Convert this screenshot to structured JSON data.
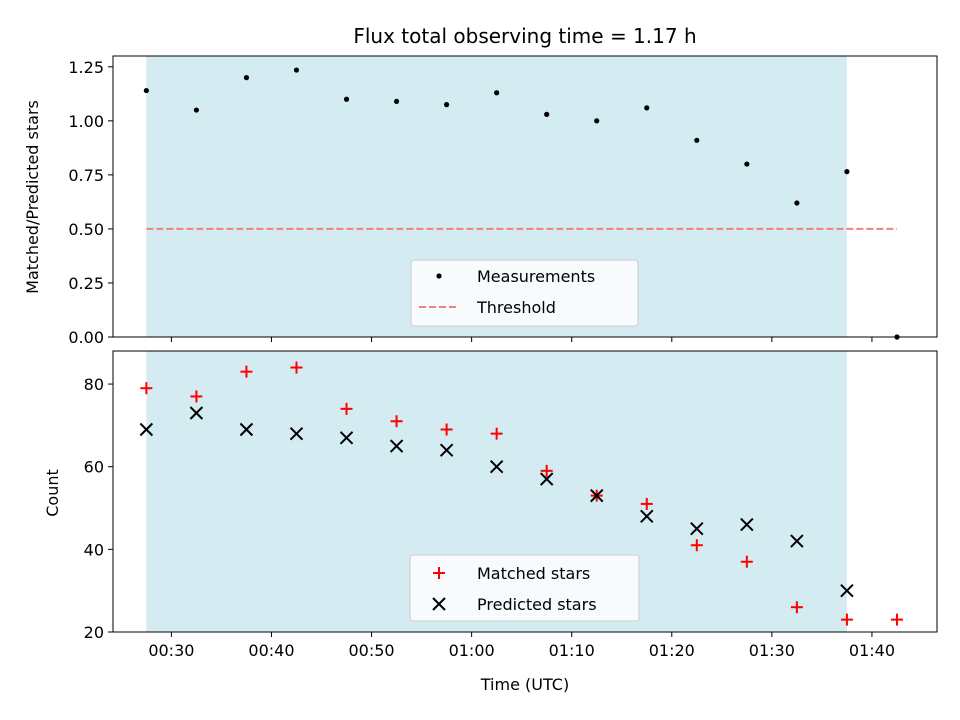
{
  "chart_data": [
    {
      "type": "scatter",
      "title": "Flux total observing time = 1.17 h",
      "xlabel": "",
      "ylabel": "Matched/Predicted stars",
      "xlim": [
        "00:24:10",
        "01:46:30"
      ],
      "ylim": [
        0,
        1.3
      ],
      "yticks": [
        0.0,
        0.25,
        0.5,
        0.75,
        1.0,
        1.25
      ],
      "ytick_labels": [
        "0.00",
        "0.25",
        "0.50",
        "0.75",
        "1.00",
        "1.25"
      ],
      "grid": false,
      "legend_position": "lower-center",
      "observing_span": {
        "start": "00:27:30",
        "end": "01:37:30",
        "color": "#add8e6"
      },
      "series": [
        {
          "name": "Measurements",
          "marker": "dot",
          "color": "#000000",
          "x": [
            "00:27:30",
            "00:32:30",
            "00:37:30",
            "00:42:30",
            "00:47:30",
            "00:52:30",
            "00:57:30",
            "01:02:30",
            "01:07:30",
            "01:12:30",
            "01:17:30",
            "01:22:30",
            "01:27:30",
            "01:32:30",
            "01:37:30",
            "01:42:30"
          ],
          "y": [
            1.14,
            1.05,
            1.2,
            1.235,
            1.1,
            1.09,
            1.075,
            1.13,
            1.03,
            1.0,
            1.06,
            0.91,
            0.8,
            0.62,
            0.765,
            0.0
          ]
        },
        {
          "name": "Threshold",
          "marker": "dashed-line",
          "color": "#f08080",
          "x": [
            "00:27:30",
            "01:42:30"
          ],
          "y": [
            0.5,
            0.5
          ]
        }
      ]
    },
    {
      "type": "scatter",
      "title": "",
      "xlabel": "Time (UTC)",
      "ylabel": "Count",
      "xlim": [
        "00:24:10",
        "01:46:30"
      ],
      "ylim": [
        20,
        88
      ],
      "yticks": [
        20,
        40,
        60,
        80
      ],
      "ytick_labels": [
        "20",
        "40",
        "60",
        "80"
      ],
      "xticks": [
        "00:30:00",
        "00:40:00",
        "00:50:00",
        "01:00:00",
        "01:10:00",
        "01:20:00",
        "01:30:00",
        "01:40:00"
      ],
      "xtick_labels": [
        "00:30",
        "00:40",
        "00:50",
        "01:00",
        "01:10",
        "01:20",
        "01:30",
        "01:40"
      ],
      "grid": false,
      "legend_position": "lower-center",
      "observing_span": {
        "start": "00:27:30",
        "end": "01:37:30",
        "color": "#add8e6"
      },
      "series": [
        {
          "name": "Matched stars",
          "marker": "plus",
          "color": "#ff0000",
          "x": [
            "00:27:30",
            "00:32:30",
            "00:37:30",
            "00:42:30",
            "00:47:30",
            "00:52:30",
            "00:57:30",
            "01:02:30",
            "01:07:30",
            "01:12:30",
            "01:17:30",
            "01:22:30",
            "01:27:30",
            "01:32:30",
            "01:37:30",
            "01:42:30"
          ],
          "y": [
            79,
            77,
            83,
            84,
            74,
            71,
            69,
            68,
            59,
            53,
            51,
            41,
            37,
            26,
            23,
            23
          ]
        },
        {
          "name": "Predicted stars",
          "marker": "x",
          "color": "#000000",
          "x": [
            "00:27:30",
            "00:32:30",
            "00:37:30",
            "00:42:30",
            "00:47:30",
            "00:52:30",
            "00:57:30",
            "01:02:30",
            "01:07:30",
            "01:12:30",
            "01:17:30",
            "01:22:30",
            "01:27:30",
            "01:32:30",
            "01:37:30"
          ],
          "y": [
            69,
            73,
            69,
            68,
            67,
            65,
            64,
            60,
            57,
            53,
            48,
            45,
            46,
            42,
            30
          ]
        }
      ]
    }
  ]
}
